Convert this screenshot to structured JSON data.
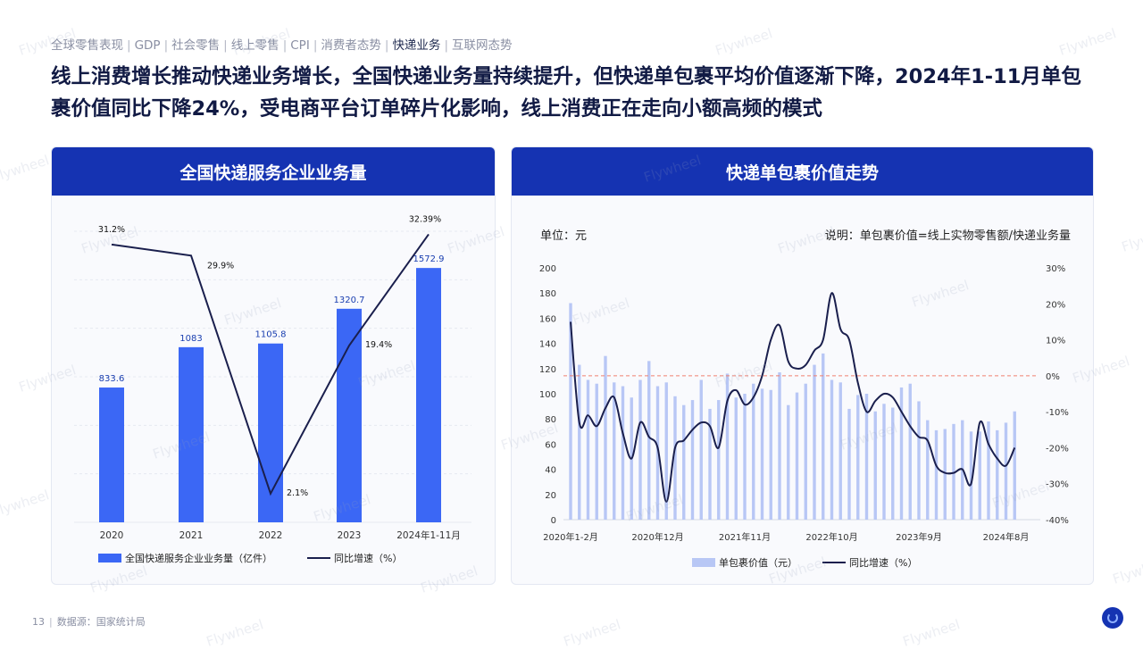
{
  "nav": {
    "items": [
      "全球零售表现",
      "GDP",
      "社会零售",
      "线上零售",
      "CPI",
      "消费者态势",
      "快递业务",
      "互联网态势"
    ],
    "active_index": 6
  },
  "headline": "线上消费增长推动快递业务增长，全国快递业务量持续提升，但快递单包裹平均价值逐渐下降，2024年1-11月单包裹价值同比下降24%，受电商平台订单碎片化影响，线上消费正在走向小额高频的模式",
  "watermark": "Flywheel",
  "left_panel": {
    "title": "全国快递服务企业业务量"
  },
  "right_panel": {
    "title": "快递单包裹价值走势",
    "unit_label": "单位：元",
    "note": "说明：单包裹价值=线上实物零售额/快递业务量"
  },
  "footer": {
    "page_number": "13",
    "source": "数据源：国家统计局"
  },
  "colors": {
    "brand": "#1533b2",
    "bar": "#3b67f5",
    "bar_light": "#b8c7f5",
    "line": "#1a1f4d",
    "dash": "#f08070"
  },
  "chart_data": [
    {
      "type": "bar",
      "title": "全国快递服务企业业务量",
      "categories": [
        "2020",
        "2021",
        "2022",
        "2023",
        "2024年1-11月"
      ],
      "series": [
        {
          "name": "全国快递服务企业业务量（亿件）",
          "type": "bar",
          "values": [
            833.6,
            1083,
            1105.8,
            1320.7,
            1572.9
          ],
          "labels": [
            "833.6",
            "1083",
            "1105.8",
            "1320.7",
            "1572.9"
          ]
        },
        {
          "name": "同比增速（%）",
          "type": "line",
          "values": [
            31.2,
            29.9,
            2.1,
            19.4,
            32.39
          ],
          "labels": [
            "31.2%",
            "29.9%",
            "2.1%",
            "19.4%",
            "32.39%"
          ]
        }
      ],
      "grid": true,
      "legend_position": "bottom"
    },
    {
      "type": "bar",
      "title": "快递单包裹价值走势",
      "ylim": [
        0,
        200
      ],
      "y_ticks": [
        "0",
        "20",
        "40",
        "60",
        "80",
        "100",
        "120",
        "140",
        "160",
        "180",
        "200"
      ],
      "y2lim": [
        -40,
        30
      ],
      "y2_ticks": [
        "-40%",
        "-30%",
        "-20%",
        "-10%",
        "0%",
        "10%",
        "20%",
        "30%"
      ],
      "x_tick_labels": [
        "2020年1-2月",
        "2020年12月",
        "2021年11月",
        "2022年10月",
        "2023年9月",
        "2024年8月"
      ],
      "x_tick_indices": [
        0,
        10,
        20,
        30,
        40,
        50
      ],
      "reference_line": 0,
      "series": [
        {
          "name": "单包裹价值（元）",
          "type": "bar",
          "values": [
            172,
            123,
            111,
            108,
            130,
            109,
            106,
            97,
            111,
            126,
            106,
            109,
            98,
            91,
            95,
            111,
            88,
            95,
            116,
            97,
            100,
            108,
            104,
            103,
            117,
            91,
            101,
            108,
            123,
            132,
            111,
            109,
            88,
            99,
            100,
            86,
            92,
            89,
            105,
            108,
            94,
            79,
            71,
            72,
            76,
            79,
            70,
            70,
            78,
            71,
            77,
            86
          ]
        },
        {
          "name": "同比增速（%）",
          "type": "line",
          "values": [
            15,
            -13,
            -11,
            -14,
            -9,
            -6,
            -16,
            -23,
            -13,
            -17,
            -20,
            -35,
            -20,
            -18,
            -15,
            -13,
            -14,
            -20,
            -7,
            -4,
            -8,
            -6,
            0,
            10,
            14,
            4,
            2,
            3,
            7,
            10,
            23,
            13,
            10,
            -2,
            -10,
            -7,
            -5,
            -6,
            -10,
            -14,
            -17,
            -18,
            -25,
            -27,
            -27,
            -26,
            -30,
            -13,
            -19,
            -23,
            -25,
            -20
          ]
        }
      ],
      "grid": false,
      "legend_position": "bottom"
    }
  ]
}
